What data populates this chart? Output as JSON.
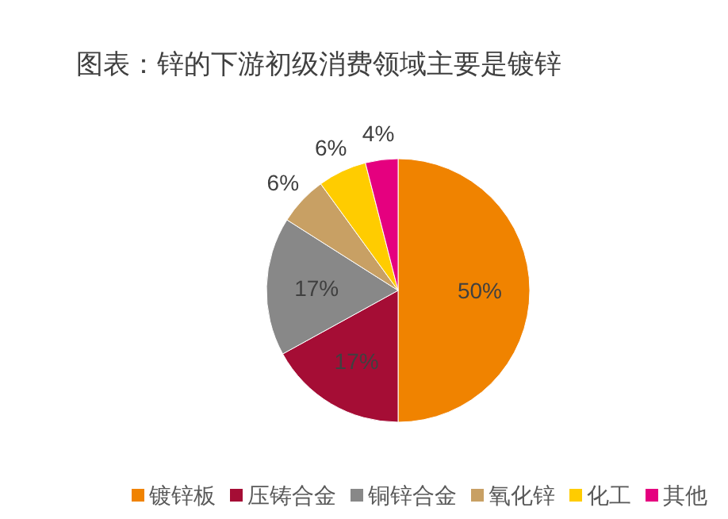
{
  "chart_data": {
    "type": "pie",
    "title": "图表：锌的下游初级消费领域主要是镀锌",
    "categories": [
      "镀锌板",
      "压铸合金",
      "铜锌合金",
      "氧化锌",
      "化工",
      "其他"
    ],
    "values": [
      50,
      17,
      17,
      6,
      6,
      4
    ],
    "colors": [
      "#f08300",
      "#a50d35",
      "#888888",
      "#c8a064",
      "#ffcc00",
      "#e5007f"
    ],
    "value_labels": [
      "50%",
      "17%",
      "17%",
      "6%",
      "6%",
      "4%"
    ],
    "legend": "bottom"
  }
}
